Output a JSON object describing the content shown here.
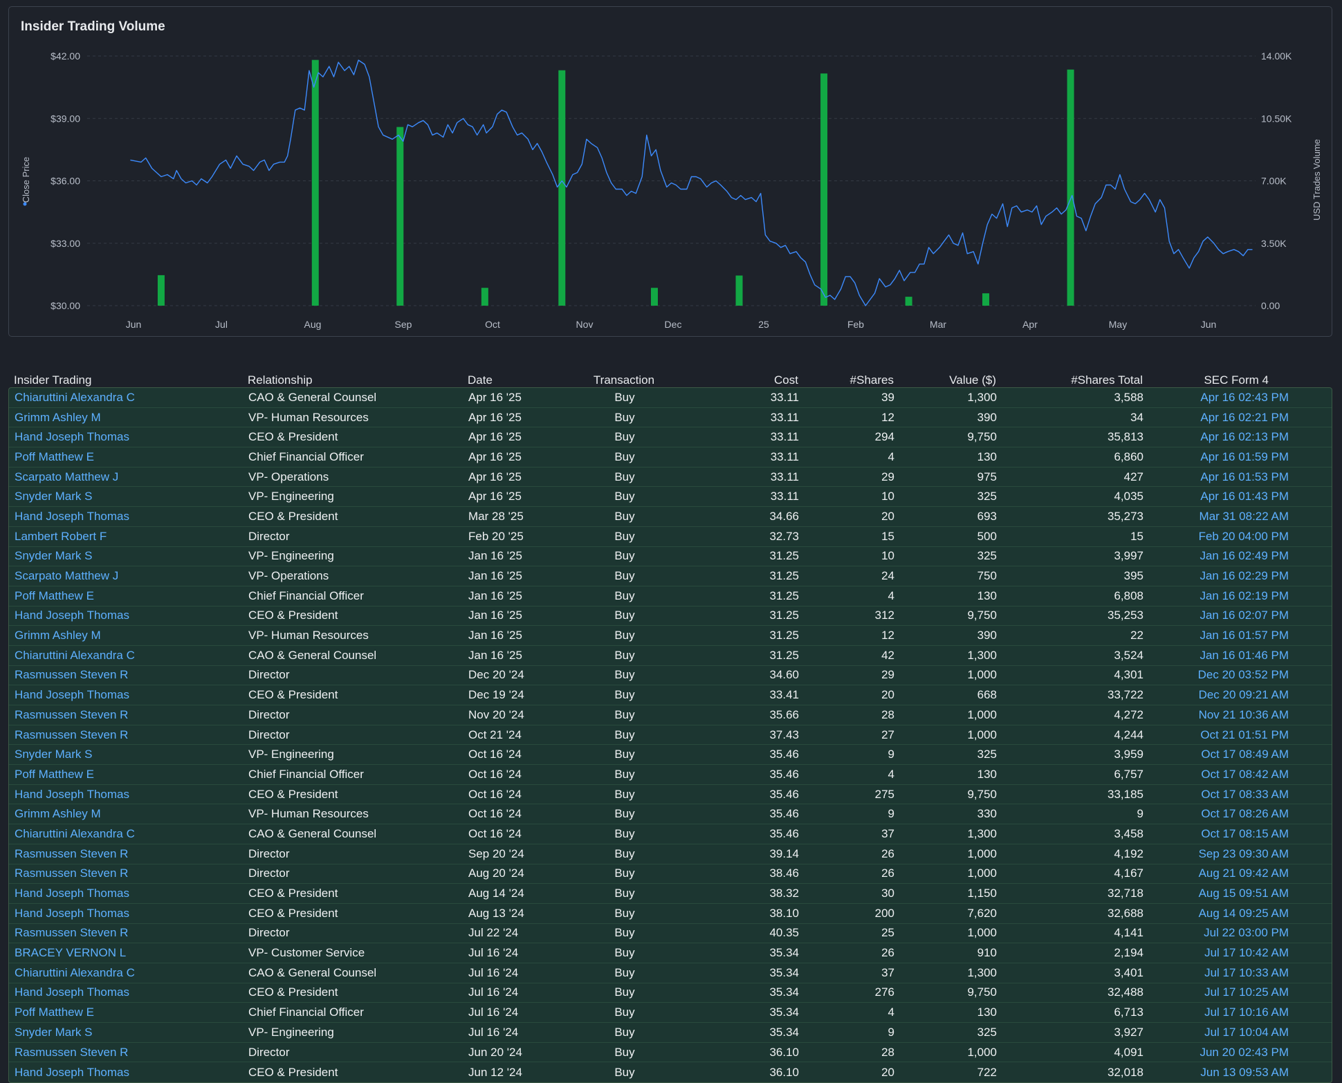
{
  "chart_data": {
    "type": "bar+line",
    "title": "Insider Trading Volume",
    "y_left_label": "Close Price",
    "y_right_label": "USD Trades Volume",
    "y_left_ticks": [
      "$42.00",
      "$39.00",
      "$36.00",
      "$33.00",
      "$30.00"
    ],
    "y_left_range": [
      30,
      42
    ],
    "y_right_ticks": [
      "14.00K",
      "10.50K",
      "7.00K",
      "3.50K",
      "0.00"
    ],
    "y_right_range": [
      0,
      14000
    ],
    "x_ticks": [
      "Jun",
      "Jul",
      "Aug",
      "Sep",
      "Oct",
      "Nov",
      "Dec",
      "25",
      "Feb",
      "Mar",
      "Apr",
      "May",
      "Jun"
    ],
    "grid": true,
    "line_color": "#3d8bfd",
    "bar_color": "#12a844",
    "close_price": [
      [
        0.0,
        37.0
      ],
      [
        0.7,
        36.9
      ],
      [
        1.0,
        37.1
      ],
      [
        1.4,
        36.6
      ],
      [
        2.0,
        36.2
      ],
      [
        2.4,
        36.3
      ],
      [
        2.8,
        36.1
      ],
      [
        3.0,
        36.5
      ],
      [
        3.3,
        36.1
      ],
      [
        3.6,
        35.9
      ],
      [
        4.0,
        36.0
      ],
      [
        4.3,
        35.8
      ],
      [
        4.6,
        36.1
      ],
      [
        5.0,
        35.9
      ],
      [
        5.3,
        36.2
      ],
      [
        5.8,
        36.8
      ],
      [
        6.2,
        37.0
      ],
      [
        6.5,
        36.6
      ],
      [
        6.9,
        37.2
      ],
      [
        7.3,
        36.8
      ],
      [
        7.7,
        36.7
      ],
      [
        8.0,
        36.5
      ],
      [
        8.4,
        36.9
      ],
      [
        8.7,
        37.0
      ],
      [
        9.0,
        36.5
      ],
      [
        9.3,
        36.8
      ],
      [
        9.7,
        36.9
      ],
      [
        10.0,
        36.9
      ],
      [
        10.2,
        37.2
      ],
      [
        10.4,
        38.0
      ],
      [
        10.7,
        39.4
      ],
      [
        11.0,
        39.5
      ],
      [
        11.3,
        39.4
      ],
      [
        11.6,
        41.3
      ],
      [
        11.9,
        40.5
      ],
      [
        12.2,
        41.2
      ],
      [
        12.5,
        41.0
      ],
      [
        12.9,
        41.5
      ],
      [
        13.2,
        41.0
      ],
      [
        13.5,
        41.7
      ],
      [
        13.9,
        41.3
      ],
      [
        14.2,
        41.5
      ],
      [
        14.5,
        41.1
      ],
      [
        14.8,
        41.8
      ],
      [
        15.2,
        41.6
      ],
      [
        15.5,
        41.0
      ],
      [
        15.8,
        39.8
      ],
      [
        16.1,
        38.6
      ],
      [
        16.4,
        38.2
      ],
      [
        16.7,
        38.1
      ],
      [
        17.0,
        38.0
      ],
      [
        17.4,
        38.2
      ],
      [
        17.7,
        37.9
      ],
      [
        18.0,
        38.7
      ],
      [
        18.3,
        38.6
      ],
      [
        18.7,
        38.8
      ],
      [
        19.0,
        38.9
      ],
      [
        19.3,
        38.7
      ],
      [
        19.6,
        38.2
      ],
      [
        19.9,
        38.3
      ],
      [
        20.3,
        38.1
      ],
      [
        20.6,
        38.7
      ],
      [
        20.9,
        38.3
      ],
      [
        21.2,
        38.8
      ],
      [
        21.6,
        39.0
      ],
      [
        21.9,
        38.7
      ],
      [
        22.2,
        38.6
      ],
      [
        22.5,
        38.2
      ],
      [
        22.9,
        38.7
      ],
      [
        23.1,
        38.3
      ],
      [
        23.5,
        38.6
      ],
      [
        23.8,
        39.2
      ],
      [
        24.1,
        39.4
      ],
      [
        24.4,
        39.3
      ],
      [
        24.8,
        38.6
      ],
      [
        25.1,
        38.2
      ],
      [
        25.4,
        38.3
      ],
      [
        25.8,
        38.0
      ],
      [
        26.1,
        37.5
      ],
      [
        26.4,
        37.8
      ],
      [
        26.7,
        37.4
      ],
      [
        27.0,
        36.9
      ],
      [
        27.4,
        36.3
      ],
      [
        27.7,
        35.7
      ],
      [
        28.0,
        36.0
      ],
      [
        28.3,
        35.7
      ],
      [
        28.7,
        36.3
      ],
      [
        29.0,
        36.4
      ],
      [
        29.3,
        36.8
      ],
      [
        29.6,
        38.0
      ],
      [
        29.9,
        37.8
      ],
      [
        30.3,
        37.6
      ],
      [
        30.6,
        37.1
      ],
      [
        30.9,
        36.4
      ],
      [
        31.2,
        35.9
      ],
      [
        31.5,
        35.6
      ],
      [
        31.9,
        35.6
      ],
      [
        32.2,
        35.3
      ],
      [
        32.5,
        35.5
      ],
      [
        32.8,
        35.4
      ],
      [
        33.2,
        36.2
      ],
      [
        33.5,
        38.2
      ],
      [
        33.8,
        37.2
      ],
      [
        34.1,
        37.5
      ],
      [
        34.4,
        36.5
      ],
      [
        34.8,
        35.7
      ],
      [
        35.1,
        35.9
      ],
      [
        35.4,
        35.8
      ],
      [
        35.7,
        35.6
      ],
      [
        36.1,
        35.6
      ],
      [
        36.4,
        36.2
      ],
      [
        36.7,
        36.2
      ],
      [
        37.0,
        36.1
      ],
      [
        37.4,
        35.7
      ],
      [
        37.7,
        35.9
      ],
      [
        38.0,
        36.0
      ],
      [
        38.3,
        35.8
      ],
      [
        38.7,
        35.5
      ],
      [
        39.0,
        35.2
      ],
      [
        39.3,
        35.1
      ],
      [
        39.6,
        35.3
      ],
      [
        39.9,
        35.1
      ],
      [
        40.3,
        35.2
      ],
      [
        40.6,
        35.0
      ],
      [
        40.9,
        35.4
      ],
      [
        41.2,
        33.4
      ],
      [
        41.5,
        33.1
      ],
      [
        41.9,
        33.0
      ],
      [
        42.2,
        32.8
      ],
      [
        42.5,
        32.9
      ],
      [
        42.8,
        32.5
      ],
      [
        43.2,
        32.6
      ],
      [
        43.5,
        32.3
      ],
      [
        43.8,
        32.1
      ],
      [
        44.1,
        31.5
      ],
      [
        44.4,
        31.0
      ],
      [
        44.8,
        30.8
      ],
      [
        45.1,
        30.4
      ],
      [
        45.4,
        30.5
      ],
      [
        45.7,
        30.3
      ],
      [
        46.1,
        30.8
      ],
      [
        46.4,
        31.4
      ],
      [
        46.7,
        31.4
      ],
      [
        47.0,
        31.1
      ],
      [
        47.3,
        30.5
      ],
      [
        47.7,
        30.0
      ],
      [
        48.0,
        30.3
      ],
      [
        48.3,
        30.6
      ],
      [
        48.6,
        31.3
      ],
      [
        49.0,
        30.9
      ],
      [
        49.3,
        31.0
      ],
      [
        49.6,
        31.3
      ],
      [
        49.9,
        31.7
      ],
      [
        50.2,
        31.2
      ],
      [
        50.6,
        31.6
      ],
      [
        50.9,
        31.6
      ],
      [
        51.2,
        32.0
      ],
      [
        51.5,
        32.0
      ],
      [
        51.8,
        32.8
      ],
      [
        52.1,
        32.5
      ],
      [
        52.5,
        32.8
      ],
      [
        52.8,
        33.1
      ],
      [
        53.1,
        33.4
      ],
      [
        53.4,
        33.0
      ],
      [
        53.7,
        32.9
      ],
      [
        54.0,
        33.5
      ],
      [
        54.3,
        32.5
      ],
      [
        54.7,
        32.6
      ],
      [
        55.0,
        32.0
      ],
      [
        55.3,
        33.0
      ],
      [
        55.6,
        33.9
      ],
      [
        55.9,
        34.4
      ],
      [
        56.2,
        34.2
      ],
      [
        56.6,
        34.9
      ],
      [
        56.9,
        33.8
      ],
      [
        57.2,
        34.7
      ],
      [
        57.5,
        34.8
      ],
      [
        57.8,
        34.5
      ],
      [
        58.2,
        34.6
      ],
      [
        58.5,
        34.5
      ],
      [
        58.8,
        34.8
      ],
      [
        59.1,
        33.9
      ],
      [
        59.4,
        34.3
      ],
      [
        59.8,
        34.5
      ],
      [
        60.1,
        34.7
      ],
      [
        60.4,
        34.4
      ],
      [
        60.7,
        34.6
      ],
      [
        61.1,
        35.3
      ],
      [
        61.4,
        34.3
      ],
      [
        61.7,
        34.2
      ],
      [
        62.0,
        33.6
      ],
      [
        62.3,
        34.3
      ],
      [
        62.6,
        34.9
      ],
      [
        63.0,
        35.2
      ],
      [
        63.3,
        35.8
      ],
      [
        63.6,
        35.8
      ],
      [
        63.9,
        35.6
      ],
      [
        64.2,
        36.3
      ],
      [
        64.5,
        35.6
      ],
      [
        64.9,
        35.0
      ],
      [
        65.2,
        34.9
      ],
      [
        65.5,
        35.1
      ],
      [
        65.8,
        35.4
      ],
      [
        66.1,
        35.1
      ],
      [
        66.5,
        34.5
      ],
      [
        66.8,
        35.1
      ],
      [
        67.1,
        34.7
      ],
      [
        67.4,
        33.1
      ],
      [
        67.7,
        32.5
      ],
      [
        68.0,
        32.7
      ],
      [
        68.3,
        32.3
      ],
      [
        68.7,
        31.8
      ],
      [
        69.0,
        32.3
      ],
      [
        69.3,
        32.6
      ],
      [
        69.6,
        33.1
      ],
      [
        69.9,
        33.3
      ],
      [
        70.3,
        33.0
      ],
      [
        70.6,
        32.7
      ],
      [
        70.9,
        32.5
      ],
      [
        71.2,
        32.6
      ],
      [
        71.6,
        32.7
      ],
      [
        71.9,
        32.6
      ],
      [
        72.2,
        32.4
      ],
      [
        72.5,
        32.7
      ],
      [
        72.8,
        32.7
      ]
    ],
    "volume_bars": [
      {
        "date_index": 2.0,
        "value": 1710
      },
      {
        "date_index": 12.0,
        "value": 13780
      },
      {
        "date_index": 17.5,
        "value": 10020
      },
      {
        "date_index": 23.0,
        "value": 1000
      },
      {
        "date_index": 28.0,
        "value": 13200
      },
      {
        "date_index": 34.0,
        "value": 1000
      },
      {
        "date_index": 39.5,
        "value": 1690
      },
      {
        "date_index": 45.0,
        "value": 13020
      },
      {
        "date_index": 50.5,
        "value": 500
      },
      {
        "date_index": 55.5,
        "value": 693
      },
      {
        "date_index": 61.0,
        "value": 13240
      }
    ],
    "x_index_range": [
      -2.8,
      73.0
    ]
  },
  "table": {
    "columns": [
      "Insider Trading",
      "Relationship",
      "Date",
      "Transaction",
      "Cost",
      "#Shares",
      "Value ($)",
      "#Shares Total",
      "SEC Form 4"
    ],
    "rows": [
      [
        "Chiaruttini Alexandra C",
        "CAO & General Counsel",
        "Apr 16 '25",
        "Buy",
        "33.11",
        "39",
        "1,300",
        "3,588",
        "Apr 16 02:43 PM"
      ],
      [
        "Grimm Ashley M",
        "VP- Human Resources",
        "Apr 16 '25",
        "Buy",
        "33.11",
        "12",
        "390",
        "34",
        "Apr 16 02:21 PM"
      ],
      [
        "Hand Joseph Thomas",
        "CEO & President",
        "Apr 16 '25",
        "Buy",
        "33.11",
        "294",
        "9,750",
        "35,813",
        "Apr 16 02:13 PM"
      ],
      [
        "Poff Matthew E",
        "Chief Financial Officer",
        "Apr 16 '25",
        "Buy",
        "33.11",
        "4",
        "130",
        "6,860",
        "Apr 16 01:59 PM"
      ],
      [
        "Scarpato Matthew J",
        "VP- Operations",
        "Apr 16 '25",
        "Buy",
        "33.11",
        "29",
        "975",
        "427",
        "Apr 16 01:53 PM"
      ],
      [
        "Snyder Mark S",
        "VP- Engineering",
        "Apr 16 '25",
        "Buy",
        "33.11",
        "10",
        "325",
        "4,035",
        "Apr 16 01:43 PM"
      ],
      [
        "Hand Joseph Thomas",
        "CEO & President",
        "Mar 28 '25",
        "Buy",
        "34.66",
        "20",
        "693",
        "35,273",
        "Mar 31 08:22 AM"
      ],
      [
        "Lambert Robert F",
        "Director",
        "Feb 20 '25",
        "Buy",
        "32.73",
        "15",
        "500",
        "15",
        "Feb 20 04:00 PM"
      ],
      [
        "Snyder Mark S",
        "VP- Engineering",
        "Jan 16 '25",
        "Buy",
        "31.25",
        "10",
        "325",
        "3,997",
        "Jan 16 02:49 PM"
      ],
      [
        "Scarpato Matthew J",
        "VP- Operations",
        "Jan 16 '25",
        "Buy",
        "31.25",
        "24",
        "750",
        "395",
        "Jan 16 02:29 PM"
      ],
      [
        "Poff Matthew E",
        "Chief Financial Officer",
        "Jan 16 '25",
        "Buy",
        "31.25",
        "4",
        "130",
        "6,808",
        "Jan 16 02:19 PM"
      ],
      [
        "Hand Joseph Thomas",
        "CEO & President",
        "Jan 16 '25",
        "Buy",
        "31.25",
        "312",
        "9,750",
        "35,253",
        "Jan 16 02:07 PM"
      ],
      [
        "Grimm Ashley M",
        "VP- Human Resources",
        "Jan 16 '25",
        "Buy",
        "31.25",
        "12",
        "390",
        "22",
        "Jan 16 01:57 PM"
      ],
      [
        "Chiaruttini Alexandra C",
        "CAO & General Counsel",
        "Jan 16 '25",
        "Buy",
        "31.25",
        "42",
        "1,300",
        "3,524",
        "Jan 16 01:46 PM"
      ],
      [
        "Rasmussen Steven R",
        "Director",
        "Dec 20 '24",
        "Buy",
        "34.60",
        "29",
        "1,000",
        "4,301",
        "Dec 20 03:52 PM"
      ],
      [
        "Hand Joseph Thomas",
        "CEO & President",
        "Dec 19 '24",
        "Buy",
        "33.41",
        "20",
        "668",
        "33,722",
        "Dec 20 09:21 AM"
      ],
      [
        "Rasmussen Steven R",
        "Director",
        "Nov 20 '24",
        "Buy",
        "35.66",
        "28",
        "1,000",
        "4,272",
        "Nov 21 10:36 AM"
      ],
      [
        "Rasmussen Steven R",
        "Director",
        "Oct 21 '24",
        "Buy",
        "37.43",
        "27",
        "1,000",
        "4,244",
        "Oct 21 01:51 PM"
      ],
      [
        "Snyder Mark S",
        "VP- Engineering",
        "Oct 16 '24",
        "Buy",
        "35.46",
        "9",
        "325",
        "3,959",
        "Oct 17 08:49 AM"
      ],
      [
        "Poff Matthew E",
        "Chief Financial Officer",
        "Oct 16 '24",
        "Buy",
        "35.46",
        "4",
        "130",
        "6,757",
        "Oct 17 08:42 AM"
      ],
      [
        "Hand Joseph Thomas",
        "CEO & President",
        "Oct 16 '24",
        "Buy",
        "35.46",
        "275",
        "9,750",
        "33,185",
        "Oct 17 08:33 AM"
      ],
      [
        "Grimm Ashley M",
        "VP- Human Resources",
        "Oct 16 '24",
        "Buy",
        "35.46",
        "9",
        "330",
        "9",
        "Oct 17 08:26 AM"
      ],
      [
        "Chiaruttini Alexandra C",
        "CAO & General Counsel",
        "Oct 16 '24",
        "Buy",
        "35.46",
        "37",
        "1,300",
        "3,458",
        "Oct 17 08:15 AM"
      ],
      [
        "Rasmussen Steven R",
        "Director",
        "Sep 20 '24",
        "Buy",
        "39.14",
        "26",
        "1,000",
        "4,192",
        "Sep 23 09:30 AM"
      ],
      [
        "Rasmussen Steven R",
        "Director",
        "Aug 20 '24",
        "Buy",
        "38.46",
        "26",
        "1,000",
        "4,167",
        "Aug 21 09:42 AM"
      ],
      [
        "Hand Joseph Thomas",
        "CEO & President",
        "Aug 14 '24",
        "Buy",
        "38.32",
        "30",
        "1,150",
        "32,718",
        "Aug 15 09:51 AM"
      ],
      [
        "Hand Joseph Thomas",
        "CEO & President",
        "Aug 13 '24",
        "Buy",
        "38.10",
        "200",
        "7,620",
        "32,688",
        "Aug 14 09:25 AM"
      ],
      [
        "Rasmussen Steven R",
        "Director",
        "Jul 22 '24",
        "Buy",
        "40.35",
        "25",
        "1,000",
        "4,141",
        "Jul 22 03:00 PM"
      ],
      [
        "BRACEY VERNON L",
        "VP- Customer Service",
        "Jul 16 '24",
        "Buy",
        "35.34",
        "26",
        "910",
        "2,194",
        "Jul 17 10:42 AM"
      ],
      [
        "Chiaruttini Alexandra C",
        "CAO & General Counsel",
        "Jul 16 '24",
        "Buy",
        "35.34",
        "37",
        "1,300",
        "3,401",
        "Jul 17 10:33 AM"
      ],
      [
        "Hand Joseph Thomas",
        "CEO & President",
        "Jul 16 '24",
        "Buy",
        "35.34",
        "276",
        "9,750",
        "32,488",
        "Jul 17 10:25 AM"
      ],
      [
        "Poff Matthew E",
        "Chief Financial Officer",
        "Jul 16 '24",
        "Buy",
        "35.34",
        "4",
        "130",
        "6,713",
        "Jul 17 10:16 AM"
      ],
      [
        "Snyder Mark S",
        "VP- Engineering",
        "Jul 16 '24",
        "Buy",
        "35.34",
        "9",
        "325",
        "3,927",
        "Jul 17 10:04 AM"
      ],
      [
        "Rasmussen Steven R",
        "Director",
        "Jun 20 '24",
        "Buy",
        "36.10",
        "28",
        "1,000",
        "4,091",
        "Jun 20 02:43 PM"
      ],
      [
        "Hand Joseph Thomas",
        "CEO & President",
        "Jun 12 '24",
        "Buy",
        "36.10",
        "20",
        "722",
        "32,018",
        "Jun 13 09:53 AM"
      ]
    ]
  }
}
